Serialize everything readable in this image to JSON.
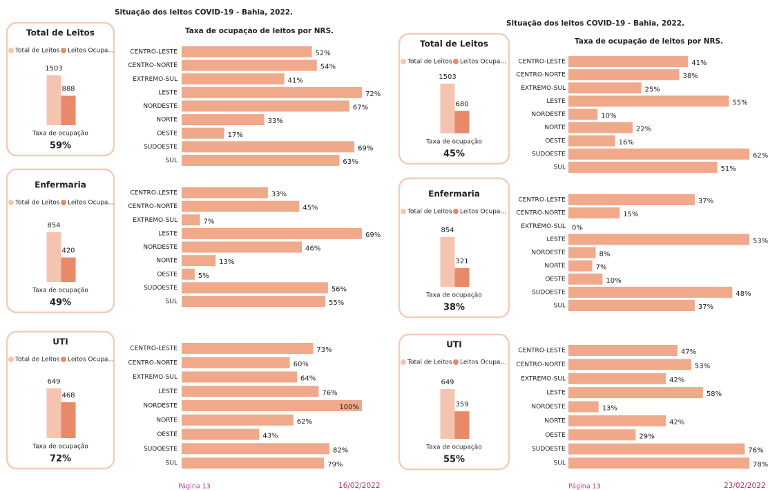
{
  "panels": [
    {
      "title": "Situação dos leitos COVID-19 - Bahia, 2022.",
      "subtitle": "Taxa de ocupação de leitos por NRS.",
      "page": "Página 13",
      "date": "16/02/2022",
      "sections": [
        {
          "card": {
            "title": "Total de Leitos",
            "legend": [
              "Total de Leitos",
              "Leitos Ocupa..."
            ],
            "values": [
              1503,
              888
            ],
            "rate_caption": "Taxa de ocupação",
            "rate": 59,
            "rate_label": "59%"
          },
          "bars": {
            "categories": [
              "CENTRO-LESTE",
              "CENTRO-NORTE",
              "EXTREMO-SUL",
              "LESTE",
              "NORDESTE",
              "NORTE",
              "OESTE",
              "SUDOESTE",
              "SUL"
            ],
            "values": [
              52,
              54,
              41,
              72,
              67,
              33,
              17,
              69,
              63
            ],
            "value_labels": [
              "52%",
              "54%",
              "41%",
              "72%",
              "67%",
              "33%",
              "17%",
              "69%",
              "63%"
            ]
          }
        },
        {
          "card": {
            "title": "Enfermaria",
            "legend": [
              "Total de Leitos",
              "Leitos Ocupa..."
            ],
            "values": [
              854,
              420
            ],
            "rate_caption": "Taxa de ocupação",
            "rate": 49,
            "rate_label": "49%"
          },
          "bars": {
            "categories": [
              "CENTRO-LESTE",
              "CENTRO-NORTE",
              "EXTREMO-SUL",
              "LESTE",
              "NORDESTE",
              "NORTE",
              "OESTE",
              "SUDOESTE",
              "SUL"
            ],
            "values": [
              33,
              45,
              7,
              69,
              46,
              13,
              5,
              56,
              55
            ],
            "value_labels": [
              "33%",
              "45%",
              "7%",
              "69%",
              "46%",
              "13%",
              "5%",
              "56%",
              "55%"
            ]
          }
        },
        {
          "card": {
            "title": "UTI",
            "legend": [
              "Total de Leitos",
              "Leitos Ocupa..."
            ],
            "values": [
              649,
              468
            ],
            "rate_caption": "Taxa de ocupação",
            "rate": 72,
            "rate_label": "72%"
          },
          "bars": {
            "categories": [
              "CENTRO-LESTE",
              "CENTRO-NORTE",
              "EXTREMO-SUL",
              "LESTE",
              "NORDESTE",
              "NORTE",
              "OESTE",
              "SUDOESTE",
              "SUL"
            ],
            "values": [
              73,
              60,
              64,
              76,
              100,
              62,
              43,
              82,
              79
            ],
            "value_labels": [
              "73%",
              "60%",
              "64%",
              "76%",
              "100%",
              "62%",
              "43%",
              "82%",
              "79%"
            ]
          }
        }
      ]
    },
    {
      "title": "Situação dos leitos COVID-19 - Bahia, 2022.",
      "subtitle": "Taxa de ocupação de leitos por NRS.",
      "page": "Página 13",
      "date": "23/02/2022",
      "sections": [
        {
          "card": {
            "title": "Total de Leitos",
            "legend": [
              "Total de Leitos",
              "Leitos Ocupa..."
            ],
            "values": [
              1503,
              680
            ],
            "rate_caption": "Taxa de ocupação",
            "rate": 45,
            "rate_label": "45%"
          },
          "bars": {
            "categories": [
              "CENTRO-LESTE",
              "CENTRO-NORTE",
              "EXTREMO-SUL",
              "LESTE",
              "NORDESTE",
              "NORTE",
              "OESTE",
              "SUDOESTE",
              "SUL"
            ],
            "values": [
              41,
              38,
              25,
              55,
              10,
              22,
              16,
              62,
              51
            ],
            "value_labels": [
              "41%",
              "38%",
              "25%",
              "55%",
              "10%",
              "22%",
              "16%",
              "62%",
              "51%"
            ]
          }
        },
        {
          "card": {
            "title": "Enfermaria",
            "legend": [
              "Total de Leitos",
              "Leitos Ocupa..."
            ],
            "values": [
              854,
              321
            ],
            "rate_caption": "Taxa de ocupação",
            "rate": 38,
            "rate_label": "38%"
          },
          "bars": {
            "categories": [
              "CENTRO-LESTE",
              "CENTRO-NORTE",
              "EXTREMO-SUL",
              "LESTE",
              "NORDESTE",
              "NORTE",
              "OESTE",
              "SUDOESTE",
              "SUL"
            ],
            "values": [
              37,
              15,
              0,
              53,
              8,
              7,
              10,
              48,
              37
            ],
            "value_labels": [
              "37%",
              "15%",
              "0%",
              "53%",
              "8%",
              "7%",
              "10%",
              "48%",
              "37%"
            ]
          }
        },
        {
          "card": {
            "title": "UTI",
            "legend": [
              "Total de Leitos",
              "Leitos Ocupa..."
            ],
            "values": [
              649,
              359
            ],
            "rate_caption": "Taxa de ocupação",
            "rate": 55,
            "rate_label": "55%"
          },
          "bars": {
            "categories": [
              "CENTRO-LESTE",
              "CENTRO-NORTE",
              "EXTREMO-SUL",
              "LESTE",
              "NORDESTE",
              "NORTE",
              "OESTE",
              "SUDOESTE",
              "SUL"
            ],
            "values": [
              47,
              53,
              42,
              58,
              13,
              42,
              29,
              76,
              78
            ],
            "value_labels": [
              "47%",
              "53%",
              "42%",
              "58%",
              "13%",
              "42%",
              "29%",
              "76%",
              "78%"
            ]
          }
        }
      ]
    }
  ]
}
